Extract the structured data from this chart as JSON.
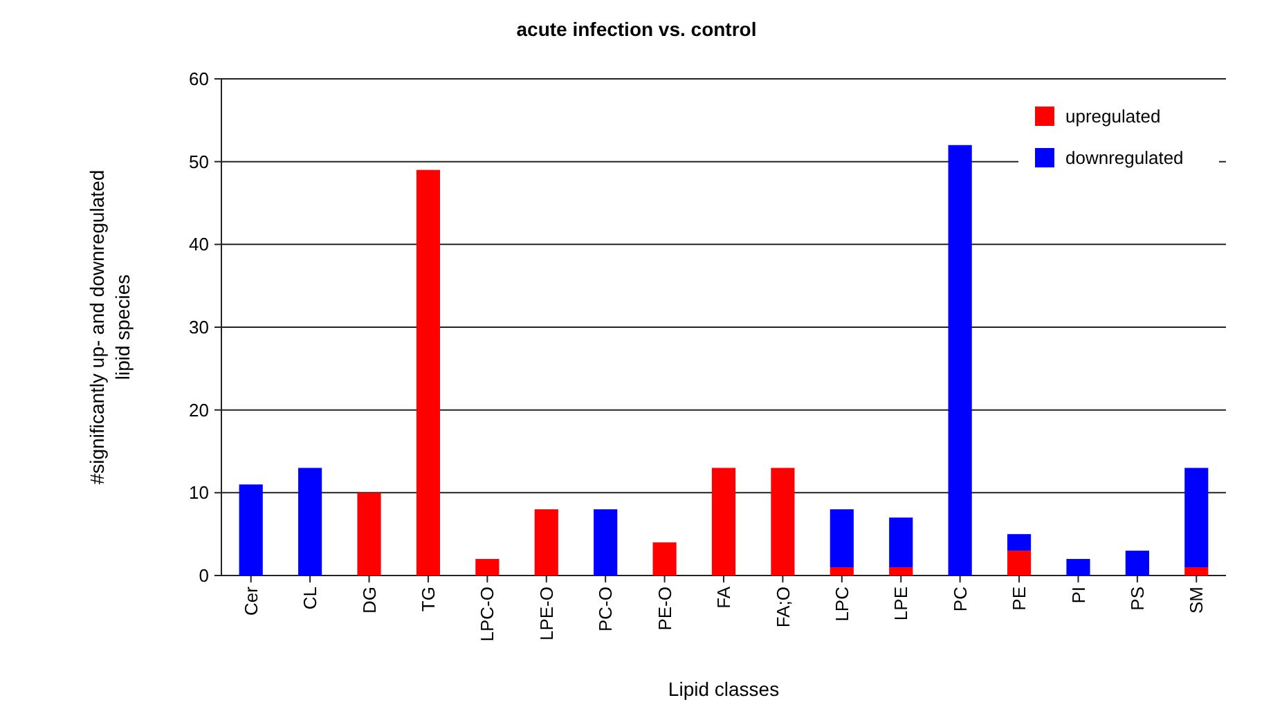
{
  "chart_data": {
    "type": "bar",
    "title": "acute infection vs. control",
    "xlabel": "Lipid classes",
    "ylabel": "#significantly up- and downregulated lipid species",
    "categories": [
      "Cer",
      "CL",
      "DG",
      "TG",
      "LPC-O",
      "LPE-O",
      "PC-O",
      "PE-O",
      "FA",
      "FA;O",
      "LPC",
      "LPE",
      "PC",
      "PE",
      "PI",
      "PS",
      "SM"
    ],
    "stacked": true,
    "series": [
      {
        "name": "upregulated",
        "color": "#ff0000",
        "values": [
          0,
          0,
          10,
          49,
          2,
          8,
          0,
          4,
          13,
          13,
          1,
          1,
          0,
          3,
          0,
          0,
          1
        ]
      },
      {
        "name": "downregulated",
        "color": "#0000ff",
        "values": [
          11,
          13,
          0,
          0,
          0,
          0,
          8,
          0,
          0,
          0,
          7,
          6,
          52,
          2,
          2,
          3,
          12
        ]
      }
    ],
    "ylim": [
      0,
      60
    ],
    "yticks": [
      0,
      10,
      20,
      30,
      40,
      50,
      60
    ],
    "grid": "y",
    "legend": "top right"
  }
}
